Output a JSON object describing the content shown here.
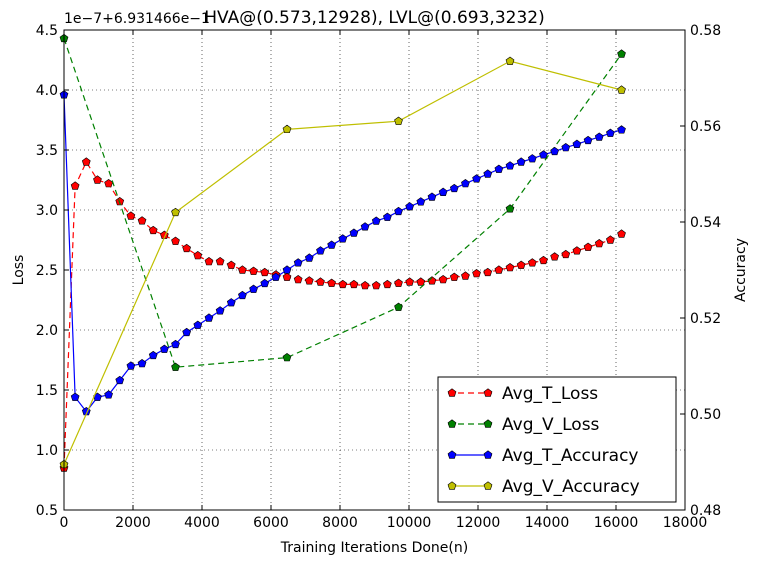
{
  "chart_data": {
    "type": "line",
    "title": "HVA@(0.573,12928), LVL@(0.693,3232)",
    "offset_label": "1e−7+6.931466e−1",
    "xlabel": "Training Iterations Done(n)",
    "ylabel_left": "Loss",
    "ylabel_right": "Accuracy",
    "xlim": [
      0,
      18000
    ],
    "ylim_left": [
      0.5,
      4.5
    ],
    "ylim_right": [
      0.48,
      0.58
    ],
    "x_ticks": [
      "0",
      "2000",
      "4000",
      "6000",
      "8000",
      "10000",
      "12000",
      "14000",
      "16000",
      "18000"
    ],
    "y_left_ticks": [
      "0.5",
      "1.0",
      "1.5",
      "2.0",
      "2.5",
      "3.0",
      "3.5",
      "4.0",
      "4.5"
    ],
    "y_right_ticks": [
      "0.48",
      "0.50",
      "0.52",
      "0.54",
      "0.56",
      "0.58"
    ],
    "grid": true,
    "legend_position": "bottom-right",
    "series": [
      {
        "name": "Avg_T_Loss",
        "axis": "left",
        "color": "#ff0000",
        "dash": true,
        "x": [
          0,
          323,
          646,
          970,
          1293,
          1616,
          1939,
          2262,
          2586,
          2909,
          3232,
          3555,
          3878,
          4202,
          4525,
          4848,
          5171,
          5494,
          5818,
          6141,
          6464,
          6787,
          7110,
          7434,
          7757,
          8080,
          8403,
          8726,
          9050,
          9373,
          9696,
          10019,
          10342,
          10666,
          10989,
          11312,
          11635,
          11958,
          12282,
          12605,
          12928,
          13251,
          13574,
          13898,
          14221,
          14544,
          14867,
          15190,
          15514,
          15837,
          16160
        ],
        "y": [
          0.85,
          3.2,
          3.4,
          3.25,
          3.22,
          3.07,
          2.95,
          2.91,
          2.83,
          2.79,
          2.74,
          2.68,
          2.62,
          2.57,
          2.57,
          2.54,
          2.5,
          2.49,
          2.48,
          2.46,
          2.44,
          2.42,
          2.41,
          2.4,
          2.39,
          2.38,
          2.38,
          2.37,
          2.37,
          2.38,
          2.39,
          2.4,
          2.4,
          2.41,
          2.42,
          2.44,
          2.45,
          2.47,
          2.48,
          2.5,
          2.52,
          2.54,
          2.56,
          2.58,
          2.61,
          2.63,
          2.66,
          2.69,
          2.72,
          2.75,
          2.8
        ]
      },
      {
        "name": "Avg_V_Loss",
        "axis": "left",
        "color": "#008000",
        "dash": true,
        "x": [
          0,
          3232,
          6464,
          9696,
          12928,
          16160
        ],
        "y": [
          4.43,
          1.69,
          1.77,
          2.19,
          3.01,
          4.3
        ]
      },
      {
        "name": "Avg_T_Accuracy",
        "axis": "right",
        "color": "#0000ff",
        "dash": false,
        "x": [
          0,
          323,
          646,
          970,
          1293,
          1616,
          1939,
          2262,
          2586,
          2909,
          3232,
          3555,
          3878,
          4202,
          4525,
          4848,
          5171,
          5494,
          5818,
          6141,
          6464,
          6787,
          7110,
          7434,
          7757,
          8080,
          8403,
          8726,
          9050,
          9373,
          9696,
          10019,
          10342,
          10666,
          10989,
          11312,
          11635,
          11958,
          12282,
          12605,
          12928,
          13251,
          13574,
          13898,
          14221,
          14544,
          14867,
          15190,
          15514,
          15837,
          16160
        ],
        "y": [
          0.5665,
          0.5035,
          0.5005,
          0.5035,
          0.504,
          0.507,
          0.51,
          0.5105,
          0.5122,
          0.5135,
          0.5145,
          0.517,
          0.5185,
          0.52,
          0.5215,
          0.5232,
          0.5247,
          0.526,
          0.5272,
          0.5285,
          0.53,
          0.5315,
          0.5325,
          0.534,
          0.5352,
          0.5365,
          0.5377,
          0.539,
          0.5402,
          0.541,
          0.5422,
          0.5432,
          0.5442,
          0.5452,
          0.5462,
          0.547,
          0.548,
          0.549,
          0.55,
          0.551,
          0.5517,
          0.5525,
          0.5532,
          0.554,
          0.5547,
          0.5555,
          0.5562,
          0.557,
          0.5577,
          0.5585,
          0.5592
        ]
      },
      {
        "name": "Avg_V_Accuracy",
        "axis": "right",
        "color": "#bfbf00",
        "dash": false,
        "x": [
          0,
          3232,
          6464,
          9696,
          12928,
          16160
        ],
        "y": [
          0.4895,
          0.542,
          0.5593,
          0.561,
          0.5735,
          0.5675
        ]
      }
    ]
  }
}
